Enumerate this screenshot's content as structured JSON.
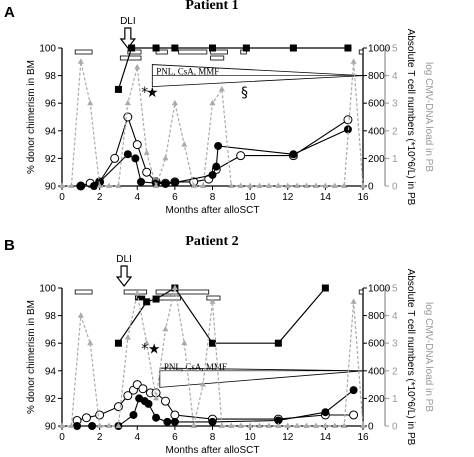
{
  "chart_data": [
    {
      "type": "line",
      "panel_label": "A",
      "title": "Patient 1",
      "xlabel": "Months after alloSCT",
      "ylabel_left": "% donor chimerism in BM",
      "ylabel_right": "Absolute T cell numbers (*10^6/L) in PB",
      "ylabel_right2": "log CMV-DNA load in PB",
      "xlim": [
        0,
        16
      ],
      "xticks": [
        "0",
        "2",
        "4",
        "6",
        "8",
        "10",
        "12",
        "14",
        "16"
      ],
      "ylim_left": [
        90,
        100
      ],
      "yticks_left": [
        "90",
        "92",
        "94",
        "96",
        "98",
        "100"
      ],
      "ylim_right": [
        0,
        1000
      ],
      "yticks_right": [
        "0",
        "200",
        "400",
        "600",
        "800",
        "1000"
      ],
      "ylim_right2": [
        0,
        5
      ],
      "yticks_right2": [
        "0",
        "1",
        "2",
        "3",
        "4",
        "5"
      ],
      "dli_label": "DLI",
      "dli_x": 3.5,
      "therapy_label": "PNL, CsA, MMF",
      "therapy_range": [
        4.8,
        16
      ],
      "series": [
        {
          "marker": "filled-square",
          "axis": "left",
          "points": [
            [
              3,
              97
            ],
            [
              3.7,
              100
            ],
            [
              5,
              100
            ],
            [
              6,
              100
            ],
            [
              8,
              100
            ],
            [
              9.8,
              100
            ],
            [
              12.3,
              100
            ],
            [
              15.2,
              100
            ]
          ]
        },
        {
          "marker": "open-circle",
          "axis": "right",
          "points": [
            [
              1,
              0
            ],
            [
              1.5,
              20
            ],
            [
              2,
              30
            ],
            [
              2.8,
              200
            ],
            [
              3.5,
              500
            ],
            [
              4,
              300
            ],
            [
              4.5,
              100
            ],
            [
              5,
              30
            ],
            [
              5.5,
              20
            ],
            [
              6,
              30
            ],
            [
              7,
              30
            ],
            [
              7.8,
              50
            ],
            [
              8.2,
              120
            ],
            [
              9.5,
              220
            ],
            [
              12.3,
              220
            ],
            [
              15.2,
              480
            ]
          ]
        },
        {
          "marker": "filled-circle",
          "axis": "right",
          "points": [
            [
              1,
              0
            ],
            [
              1.7,
              0
            ],
            [
              2,
              30
            ],
            [
              3.5,
              230
            ],
            [
              3.9,
              200
            ],
            [
              4.2,
              30
            ],
            [
              5,
              20
            ],
            [
              5.5,
              15
            ],
            [
              6,
              25
            ],
            [
              8,
              80
            ],
            [
              8.2,
              140
            ],
            [
              8.3,
              290
            ],
            [
              12.3,
              230
            ],
            [
              15.2,
              410
            ]
          ]
        },
        {
          "marker": "gray-triangle",
          "axis": "right2",
          "points": [
            [
              0,
              0
            ],
            [
              0.5,
              0
            ],
            [
              1,
              4.5
            ],
            [
              1.5,
              3
            ],
            [
              2,
              0
            ],
            [
              2.5,
              0
            ],
            [
              3,
              0
            ],
            [
              3.5,
              3
            ],
            [
              4,
              4.3
            ],
            [
              4.5,
              1.2
            ],
            [
              5,
              0
            ],
            [
              5.5,
              1
            ],
            [
              6,
              3
            ],
            [
              6.5,
              1.5
            ],
            [
              7,
              0
            ],
            [
              7.5,
              0
            ],
            [
              8,
              3
            ],
            [
              8.5,
              3.5
            ],
            [
              9,
              0
            ],
            [
              9.5,
              0
            ],
            [
              10,
              0
            ],
            [
              10.5,
              0
            ],
            [
              11,
              0
            ],
            [
              11.5,
              0
            ],
            [
              12,
              0
            ],
            [
              12.5,
              0
            ],
            [
              13,
              0
            ],
            [
              13.5,
              0
            ],
            [
              14,
              0
            ],
            [
              14.5,
              0
            ],
            [
              15,
              0
            ],
            [
              15.5,
              4.5
            ],
            [
              16,
              0
            ]
          ]
        }
      ],
      "annotations": [
        {
          "symbol": "*",
          "x": 4.4,
          "y": 96.8
        },
        {
          "symbol": "★",
          "x": 4.8,
          "y": 96.8
        },
        {
          "symbol": "§",
          "x": 9.7,
          "y": 96.8
        }
      ],
      "bars_top": [
        [
          0.7,
          1.6
        ],
        [
          3.5,
          4.2
        ],
        [
          5,
          5.6
        ],
        [
          6.2,
          7.7
        ],
        [
          7.9,
          8.8
        ],
        [
          9.5,
          9.8
        ],
        [
          15.8,
          16
        ]
      ],
      "bars_second": [
        [
          3.1,
          4.2
        ],
        [
          7.9,
          8.6
        ]
      ]
    },
    {
      "type": "line",
      "panel_label": "B",
      "title": "Patient 2",
      "xlabel": "Months after alloSCT",
      "ylabel_left": "% donor chimerism in BM",
      "ylabel_right": "Absolute T cell numbers (*10^6/L) in PB",
      "ylabel_right2": "log CMV-DNA load in PB",
      "xlim": [
        0,
        16
      ],
      "xticks": [
        "0",
        "2",
        "4",
        "6",
        "8",
        "10",
        "12",
        "14",
        "16"
      ],
      "ylim_left": [
        90,
        100
      ],
      "yticks_left": [
        "90",
        "92",
        "94",
        "96",
        "98",
        "100"
      ],
      "ylim_right": [
        0,
        1000
      ],
      "yticks_right": [
        "0",
        "200",
        "400",
        "600",
        "800",
        "1000"
      ],
      "ylim_right2": [
        0,
        5
      ],
      "yticks_right2": [
        "0",
        "1",
        "2",
        "3",
        "4",
        "5"
      ],
      "dli_label": "DLI",
      "dli_x": 3.3,
      "therapy_label": "PNL, CsA, MMF",
      "therapy_range": [
        5.2,
        16
      ],
      "series": [
        {
          "marker": "filled-square",
          "axis": "left",
          "points": [
            [
              3,
              96
            ],
            [
              4.5,
              99
            ],
            [
              5,
              99.2
            ],
            [
              6,
              100
            ],
            [
              8,
              96
            ],
            [
              11.5,
              96
            ],
            [
              14,
              100
            ]
          ]
        },
        {
          "marker": "open-circle",
          "axis": "right",
          "points": [
            [
              0.8,
              40
            ],
            [
              1.3,
              60
            ],
            [
              2,
              80
            ],
            [
              3,
              140
            ],
            [
              3.5,
              220
            ],
            [
              3.8,
              260
            ],
            [
              4,
              300
            ],
            [
              4.3,
              270
            ],
            [
              4.7,
              240
            ],
            [
              5,
              240
            ],
            [
              5.5,
              180
            ],
            [
              6,
              80
            ],
            [
              8,
              50
            ],
            [
              11.5,
              50
            ],
            [
              14,
              80
            ],
            [
              15.5,
              80
            ]
          ]
        },
        {
          "marker": "filled-circle",
          "axis": "right",
          "points": [
            [
              0.8,
              0
            ],
            [
              1.6,
              0
            ],
            [
              3,
              0
            ],
            [
              3.8,
              80
            ],
            [
              4.1,
              200
            ],
            [
              4.4,
              180
            ],
            [
              4.6,
              160
            ],
            [
              5,
              60
            ],
            [
              5.6,
              30
            ],
            [
              6,
              30
            ],
            [
              8,
              30
            ],
            [
              11.5,
              40
            ],
            [
              14,
              100
            ],
            [
              15.5,
              260
            ]
          ]
        },
        {
          "marker": "gray-triangle",
          "axis": "right2",
          "points": [
            [
              0,
              0
            ],
            [
              0.5,
              0
            ],
            [
              1,
              4
            ],
            [
              1.5,
              3
            ],
            [
              2,
              0
            ],
            [
              2.5,
              0
            ],
            [
              3,
              0
            ],
            [
              3.5,
              3.2
            ],
            [
              4,
              4.8
            ],
            [
              4.5,
              3
            ],
            [
              5,
              1
            ],
            [
              5.5,
              3.5
            ],
            [
              6,
              5
            ],
            [
              6.5,
              3
            ],
            [
              7,
              0
            ],
            [
              7.5,
              1.5
            ],
            [
              8,
              4.5
            ],
            [
              8.5,
              0
            ],
            [
              9,
              0
            ],
            [
              9.5,
              0
            ],
            [
              10,
              0
            ],
            [
              10.5,
              0
            ],
            [
              11,
              0
            ],
            [
              11.5,
              0
            ],
            [
              12,
              0
            ],
            [
              12.5,
              0
            ],
            [
              13,
              0
            ],
            [
              13.5,
              0
            ],
            [
              14,
              0
            ],
            [
              14.5,
              0
            ],
            [
              15,
              0
            ],
            [
              15.5,
              4.5
            ],
            [
              16,
              0
            ]
          ]
        }
      ],
      "annotations": [
        {
          "symbol": "*",
          "x": 4.4,
          "y": 95.6
        },
        {
          "symbol": "★",
          "x": 4.9,
          "y": 95.6
        }
      ],
      "bars_top": [
        [
          0.7,
          1.6
        ],
        [
          3.3,
          4.5
        ],
        [
          5,
          7.8
        ],
        [
          15.8,
          16
        ]
      ],
      "bars_second": [
        [
          3.9,
          4.4
        ],
        [
          5,
          6.3
        ],
        [
          7.7,
          8.4
        ]
      ]
    }
  ]
}
